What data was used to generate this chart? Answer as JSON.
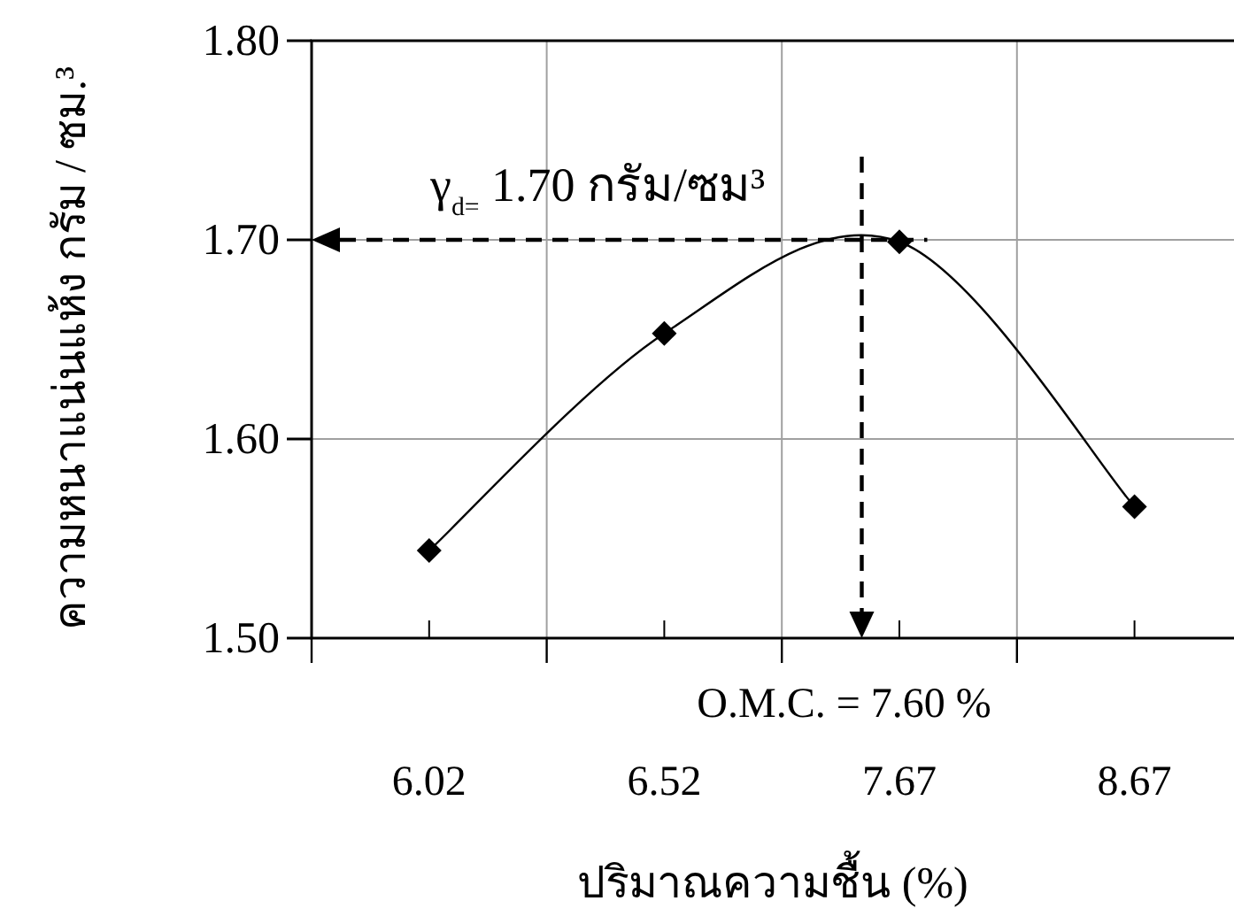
{
  "chart_data": {
    "type": "line",
    "xlabel": "ปริมาณความชื้น (%)",
    "ylabel": "ความหนาแน่นแห้ง กรัม / ซม.³",
    "categories": [
      "6.02",
      "6.52",
      "7.67",
      "8.67"
    ],
    "series": [
      {
        "color": "#000000",
        "values": [
          1.544,
          1.653,
          1.699,
          1.566
        ]
      }
    ],
    "ylim": [
      1.5,
      1.8
    ],
    "yticks": [
      {
        "value": 1.5,
        "label": "1.50"
      },
      {
        "value": 1.6,
        "label": "1.60"
      },
      {
        "value": 1.7,
        "label": "1.70"
      },
      {
        "value": 1.8,
        "label": "1.80"
      }
    ],
    "grid": true,
    "marker": "diamond",
    "line_style": "solid",
    "ref_lines": [
      {
        "axis": "y",
        "value": 1.7,
        "label": "γ$_{d=}$ 1.70 กรัม/ซม³",
        "line_style": "dashed",
        "color": "#000000"
      }
    ],
    "annotations": [
      "O.M.C. = 7.60 %"
    ]
  }
}
